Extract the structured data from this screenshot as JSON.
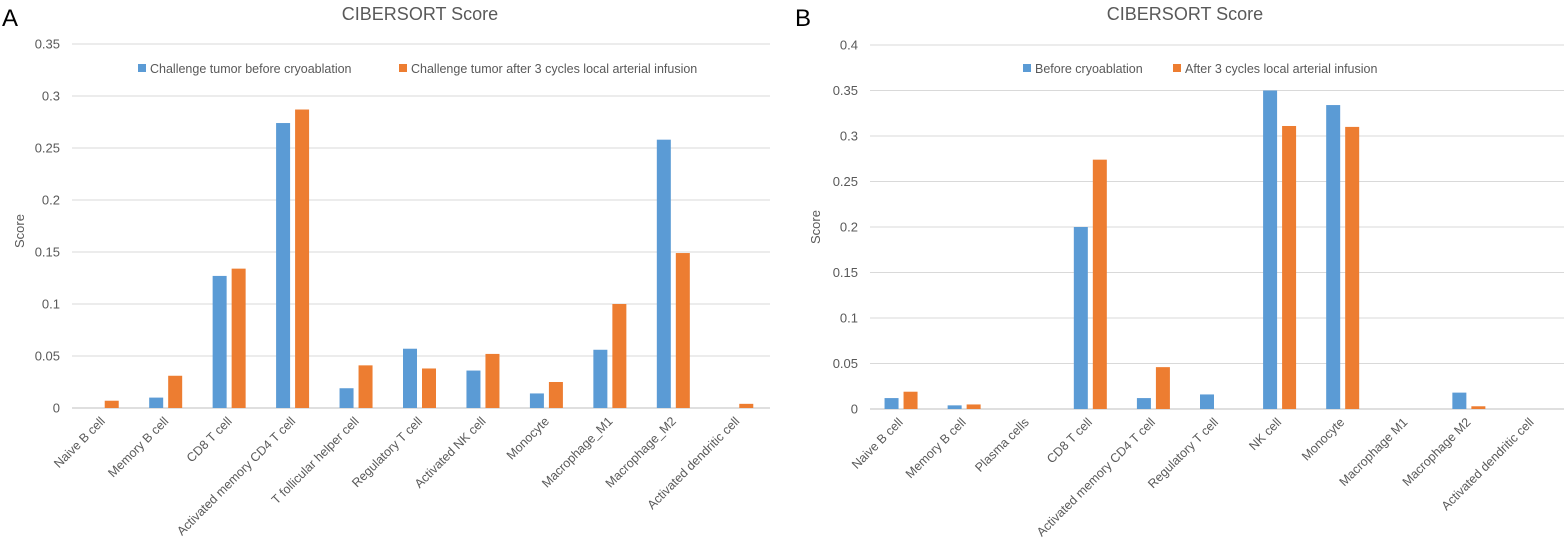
{
  "colors": {
    "series1": "#5B9BD5",
    "series2": "#ED7D31",
    "grid": "#D9D9D9",
    "text": "#595959"
  },
  "chart_data": [
    {
      "type": "bar",
      "panel_label": "A",
      "title": "CIBERSORT Score",
      "xlabel": "",
      "ylabel": "Score",
      "ylim": [
        0,
        0.35
      ],
      "yticks": [
        0,
        0.05,
        0.1,
        0.15,
        0.2,
        0.25,
        0.3,
        0.35
      ],
      "ytick_labels": [
        "0",
        "0.05",
        "0.1",
        "0.15",
        "0.2",
        "0.25",
        "0.3",
        "0.35"
      ],
      "grid": true,
      "legend_position": "top",
      "categories": [
        "Naive B cell",
        "Memory B cell",
        "CD8 T cell",
        "Activated memory CD4 T cell",
        "T follicular helper cell",
        "Regulatory T cell",
        "Activated NK cell",
        "Monocyte",
        "Macrophage_M1",
        "Macrophage_M2",
        "Activated dendritic cell"
      ],
      "series": [
        {
          "name": "Challenge tumor before cryoablation",
          "values": [
            0,
            0.01,
            0.127,
            0.274,
            0.019,
            0.057,
            0.036,
            0.014,
            0.056,
            0.258,
            0
          ]
        },
        {
          "name": "Challenge tumor after 3 cycles local arterial infusion",
          "values": [
            0.007,
            0.031,
            0.134,
            0.287,
            0.041,
            0.038,
            0.052,
            0.025,
            0.1,
            0.149,
            0.004
          ]
        }
      ]
    },
    {
      "type": "bar",
      "panel_label": "B",
      "title": "CIBERSORT Score",
      "xlabel": "",
      "ylabel": "Score",
      "ylim": [
        0,
        0.4
      ],
      "yticks": [
        0,
        0.05,
        0.1,
        0.15,
        0.2,
        0.25,
        0.3,
        0.35,
        0.4
      ],
      "ytick_labels": [
        "0",
        "0.05",
        "0.1",
        "0.15",
        "0.2",
        "0.25",
        "0.3",
        "0.35",
        "0.4"
      ],
      "grid": true,
      "legend_position": "top",
      "categories": [
        "Naive B cell",
        "Memory B cell",
        "Plasma cells",
        "CD8 T cell",
        "Activated memory CD4 T cell",
        "Regulatory T cell",
        "NK cell",
        "Monocyte",
        "Macrophage M1",
        "Macrophage M2",
        "Activated dendritic cell"
      ],
      "series": [
        {
          "name": "Before cryoablation",
          "values": [
            0.012,
            0.004,
            0,
            0.2,
            0.012,
            0.016,
            0.35,
            0.334,
            0,
            0.018,
            0
          ]
        },
        {
          "name": "After 3 cycles local arterial infusion",
          "values": [
            0.019,
            0.005,
            0,
            0.274,
            0.046,
            0,
            0.311,
            0.31,
            0,
            0.003,
            0
          ]
        }
      ]
    }
  ]
}
